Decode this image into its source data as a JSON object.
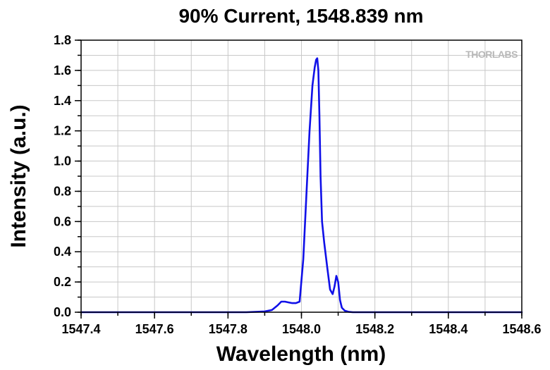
{
  "chart_data": {
    "type": "line",
    "title": "90% Current, 1548.839 nm",
    "xlabel": "Wavelength (nm)",
    "ylabel": "Intensity (a.u.)",
    "xlim": [
      1547.4,
      1548.6
    ],
    "ylim": [
      0.0,
      1.8
    ],
    "xticks": [
      1547.4,
      1547.6,
      1547.8,
      1548.0,
      1548.2,
      1548.4,
      1548.6
    ],
    "xtick_labels": [
      "1547.4",
      "1547.6",
      "1547.8",
      "1548.0",
      "1548.2",
      "1548.4",
      "1548.6"
    ],
    "yticks": [
      0.0,
      0.2,
      0.4,
      0.6,
      0.8,
      1.0,
      1.2,
      1.4,
      1.6,
      1.8
    ],
    "ytick_labels": [
      "0.0",
      "0.2",
      "0.4",
      "0.6",
      "0.8",
      "1.0",
      "1.2",
      "1.4",
      "1.6",
      "1.8"
    ],
    "grid": true,
    "watermark": "THORLABS",
    "series": [
      {
        "color": "#1010e8",
        "x": [
          1547.4,
          1547.85,
          1547.9,
          1547.92,
          1547.935,
          1547.945,
          1547.955,
          1547.965,
          1547.975,
          1547.985,
          1547.995,
          1548.005,
          1548.015,
          1548.022,
          1548.03,
          1548.036,
          1548.04,
          1548.043,
          1548.046,
          1548.049,
          1548.052,
          1548.056,
          1548.062,
          1548.07,
          1548.078,
          1548.085,
          1548.09,
          1548.095,
          1548.1,
          1548.105,
          1548.11,
          1548.118,
          1548.128,
          1548.14,
          1548.6
        ],
        "y": [
          0.0,
          0.0,
          0.005,
          0.015,
          0.045,
          0.07,
          0.07,
          0.065,
          0.06,
          0.06,
          0.07,
          0.35,
          0.85,
          1.2,
          1.5,
          1.62,
          1.67,
          1.68,
          1.6,
          1.3,
          0.9,
          0.6,
          0.46,
          0.3,
          0.15,
          0.12,
          0.17,
          0.24,
          0.2,
          0.08,
          0.03,
          0.01,
          0.003,
          0.0,
          0.0
        ]
      }
    ]
  }
}
